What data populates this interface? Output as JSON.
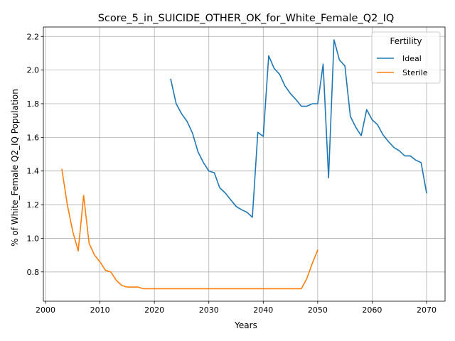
{
  "chart_data": {
    "type": "line",
    "title": "Score_5_in_SUICIDE_OTHER_OK_for_White_Female_Q2_IQ",
    "xlabel": "Years",
    "ylabel": "% of White_Female Q2_IQ Population",
    "xlim": [
      1999.6,
      2073.4
    ],
    "ylim": [
      0.626,
      2.256
    ],
    "xticks": [
      2000,
      2010,
      2020,
      2030,
      2040,
      2050,
      2060,
      2070
    ],
    "yticks": [
      0.8,
      1.0,
      1.2,
      1.4,
      1.6,
      1.8,
      2.0,
      2.2
    ],
    "ytick_labels": [
      "0.8",
      "1.0",
      "1.2",
      "1.4",
      "1.6",
      "1.8",
      "2.0",
      "2.2"
    ],
    "grid": true,
    "legend": {
      "title": "Fertility",
      "position": "top-right"
    },
    "series": [
      {
        "name": "Ideal",
        "color": "#1f77b4",
        "x": [
          2023,
          2024,
          2025,
          2026,
          2027,
          2028,
          2029,
          2030,
          2031,
          2032,
          2033,
          2034,
          2035,
          2036,
          2037,
          2038,
          2039,
          2040,
          2041,
          2042,
          2043,
          2044,
          2045,
          2046,
          2047,
          2048,
          2049,
          2050,
          2051,
          2052,
          2053,
          2054,
          2055,
          2056,
          2057,
          2058,
          2059,
          2060,
          2061,
          2062,
          2063,
          2064,
          2065,
          2066,
          2067,
          2068,
          2069,
          2070
        ],
        "y": [
          1.945,
          1.8,
          1.74,
          1.695,
          1.625,
          1.515,
          1.45,
          1.4,
          1.39,
          1.3,
          1.27,
          1.23,
          1.19,
          1.17,
          1.155,
          1.125,
          1.63,
          1.605,
          2.085,
          2.01,
          1.975,
          1.905,
          1.86,
          1.825,
          1.785,
          1.785,
          1.8,
          1.8,
          2.035,
          1.36,
          2.18,
          2.06,
          2.025,
          1.725,
          1.66,
          1.61,
          1.765,
          1.705,
          1.675,
          1.615,
          1.575,
          1.54,
          1.52,
          1.49,
          1.49,
          1.465,
          1.45,
          1.27
        ]
      },
      {
        "name": "Sterile",
        "color": "#ff7f0e",
        "x": [
          2003,
          2004,
          2005,
          2006,
          2007,
          2008,
          2009,
          2010,
          2011,
          2012,
          2013,
          2014,
          2015,
          2016,
          2017,
          2018,
          2019,
          2020,
          2021,
          2022,
          2023,
          2024,
          2025,
          2026,
          2027,
          2028,
          2029,
          2030,
          2031,
          2032,
          2033,
          2034,
          2035,
          2036,
          2037,
          2038,
          2039,
          2040,
          2041,
          2042,
          2043,
          2044,
          2045,
          2046,
          2047,
          2048,
          2049,
          2050
        ],
        "y": [
          1.41,
          1.2,
          1.04,
          0.925,
          1.255,
          0.97,
          0.9,
          0.86,
          0.81,
          0.8,
          0.75,
          0.72,
          0.71,
          0.71,
          0.71,
          0.7,
          0.7,
          0.7,
          0.7,
          0.7,
          0.7,
          0.7,
          0.7,
          0.7,
          0.7,
          0.7,
          0.7,
          0.7,
          0.7,
          0.7,
          0.7,
          0.7,
          0.7,
          0.7,
          0.7,
          0.7,
          0.7,
          0.7,
          0.7,
          0.7,
          0.7,
          0.7,
          0.7,
          0.7,
          0.7,
          0.76,
          0.85,
          0.93
        ]
      }
    ]
  }
}
